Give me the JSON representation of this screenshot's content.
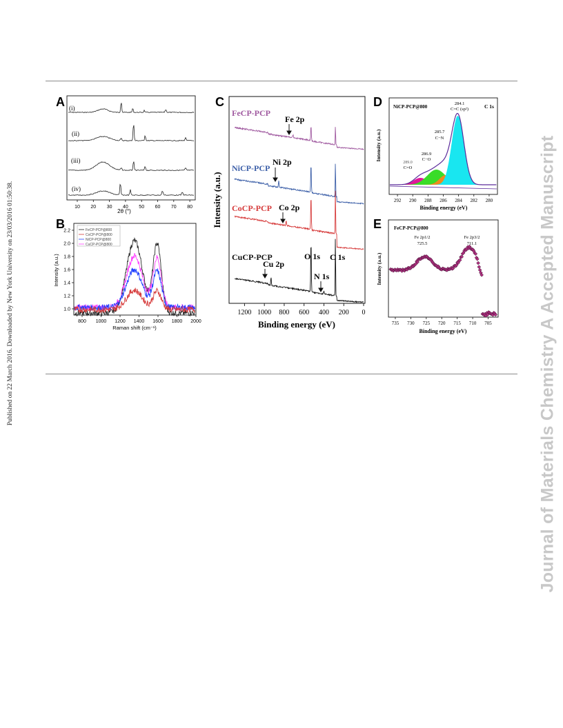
{
  "sidebar_left": "Published on 22 March 2016. Downloaded by New York University on 23/03/2016 01:50:38.",
  "sidebar_right": "Journal of Materials Chemistry A Accepted Manuscript",
  "panels": {
    "A": {
      "letter": "A",
      "xlabel": "2θ (°)",
      "traces": [
        "(i)",
        "(ii)",
        "(iii)",
        "(iv)"
      ],
      "xticks": [
        "10",
        "20",
        "30",
        "40",
        "50",
        "60",
        "70",
        "80"
      ]
    },
    "B": {
      "letter": "B",
      "xlabel": "Raman shift (cm⁻¹)",
      "ylabel": "Intensity (a.u.)",
      "legend": [
        "FeCP-PCP@800",
        "CoCP-PCP@800",
        "NiCP-PCP@800",
        "CuCP-PCP@800"
      ],
      "xticks": [
        "800",
        "1000",
        "1200",
        "1400",
        "1600",
        "1800",
        "2000"
      ],
      "yticks": [
        "1.0",
        "1.2",
        "1.4",
        "1.6",
        "1.8",
        "2.0",
        "2.2"
      ]
    },
    "C": {
      "letter": "C",
      "xlabel": "Binding energy (eV)",
      "ylabel": "Intensity (a.u.)",
      "series": [
        "FeCP-PCP",
        "NiCP-PCP",
        "CoCP-PCP",
        "CuCP-PCP"
      ],
      "annotations": [
        "Fe 2p",
        "Ni 2p",
        "Co 2p",
        "Cu 2p",
        "O 1s",
        "N 1s",
        "C 1s"
      ],
      "xticks": [
        "1200",
        "1000",
        "800",
        "600",
        "400",
        "200",
        "0"
      ]
    },
    "D": {
      "letter": "D",
      "title": "NiCP-PCP@800",
      "corner": "C 1s",
      "xlabel": "Binding energy (eV)",
      "ylabel": "Intensity (a.u.)",
      "peaks": [
        {
          "value": "284.1",
          "label": "C=C (sp²)"
        },
        {
          "value": "285.7",
          "label": "C−N"
        },
        {
          "value": "286.9",
          "label": "C−O"
        },
        {
          "value": "289.0",
          "label": "C=O"
        }
      ],
      "xticks": [
        "292",
        "290",
        "288",
        "286",
        "284",
        "282",
        "280"
      ]
    },
    "E": {
      "letter": "E",
      "title": "FeCP-PCP@800",
      "xlabel": "Binding energy (eV)",
      "ylabel": "Intensity (a.u.)",
      "peaks": [
        {
          "label": "Fe 2p1/2",
          "value": "725.5"
        },
        {
          "label": "Fe 2p3/2",
          "value": "711.1"
        }
      ],
      "xticks": [
        "735",
        "730",
        "725",
        "720",
        "715",
        "710",
        "705"
      ]
    }
  },
  "colors": {
    "fe": "#a05aa0",
    "ni": "#3c5fa8",
    "co": "#d63a3a",
    "cu": "#111111",
    "d_cc": "#19e6f0",
    "d_cn": "#f08a1e",
    "d_co": "#3adc28",
    "d_c_o2": "#e0189a",
    "e_marker": "#b03080",
    "raman_pink": "#ff40ff",
    "raman_blue": "#2040ff"
  }
}
